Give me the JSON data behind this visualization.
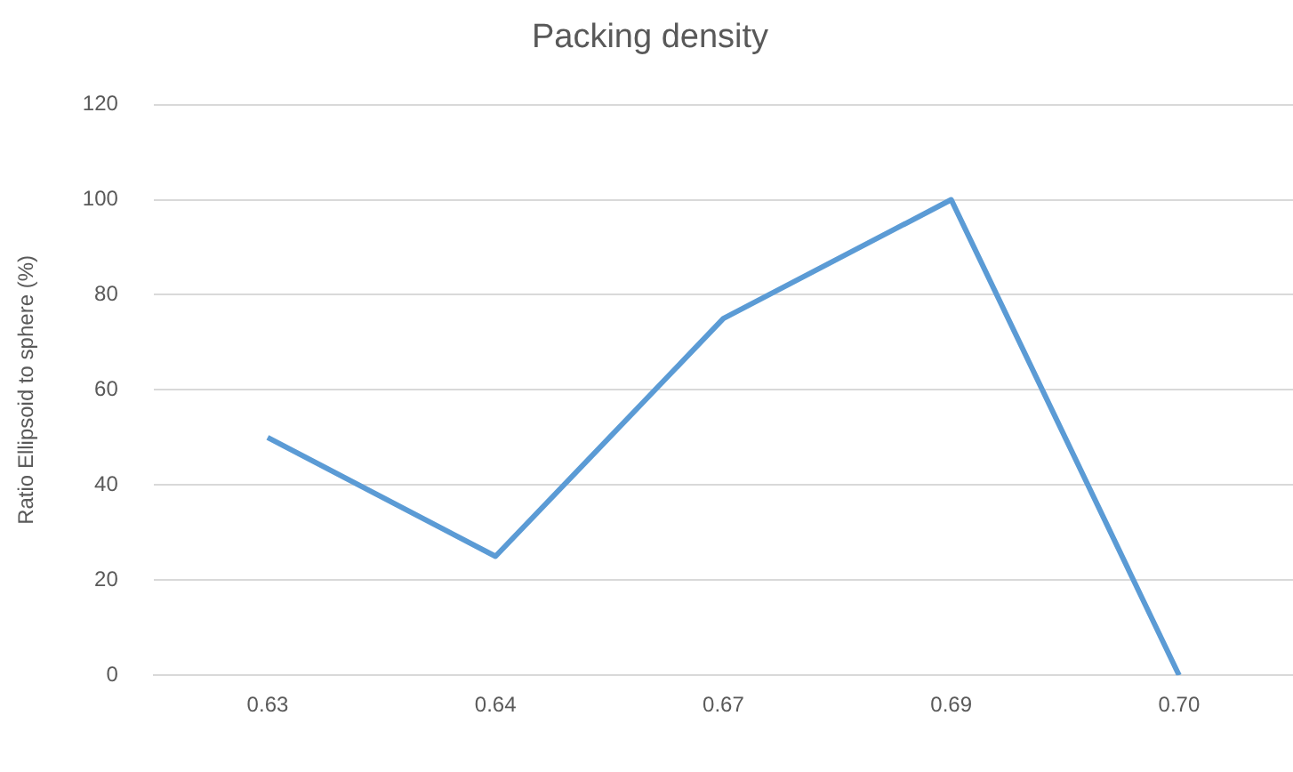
{
  "chart_data": {
    "type": "line",
    "title": "Packing density",
    "ylabel": "Ratio Ellipsoid to sphere (%)",
    "categories": [
      "0.63",
      "0.64",
      "0.67",
      "0.69",
      "0.70"
    ],
    "series": [
      {
        "color": "#5b9bd5",
        "values": [
          50,
          25,
          75,
          100,
          0
        ]
      }
    ],
    "ylim": [
      0,
      120
    ],
    "yticks": [
      0,
      20,
      40,
      60,
      80,
      100,
      120
    ],
    "grid": "y",
    "legend": false,
    "marker": "none"
  }
}
